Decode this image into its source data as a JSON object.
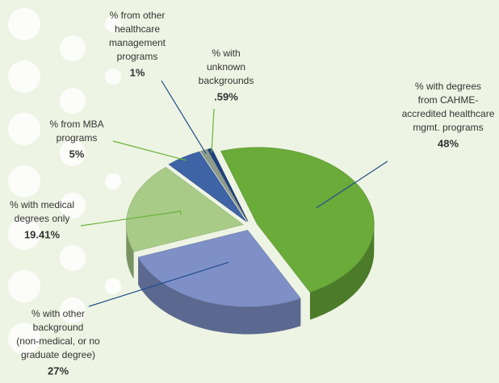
{
  "chart_data": {
    "type": "pie",
    "categories": [
      [
        "% with degrees",
        "from CAHME-",
        "accredited healthcare",
        "mgmt. programs"
      ],
      [
        "% with other",
        "background",
        "(non-medical, or no",
        "graduate degree)"
      ],
      [
        "% with medical",
        "degrees only"
      ],
      [
        "% from MBA",
        "programs"
      ],
      [
        "% from other",
        "healthcare",
        "management",
        "programs"
      ],
      [
        "% with",
        "unknown",
        "backgrounds"
      ]
    ],
    "values": [
      48,
      27,
      19.41,
      5,
      1,
      0.59
    ],
    "value_labels": [
      "48%",
      "27%",
      "19.41%",
      "5%",
      "1%",
      ".59%"
    ],
    "colors": [
      "#6aab3a",
      "#7f90c6",
      "#a8cc88",
      "#3f64a6",
      "#8f9c8c",
      "#1e4282"
    ]
  }
}
